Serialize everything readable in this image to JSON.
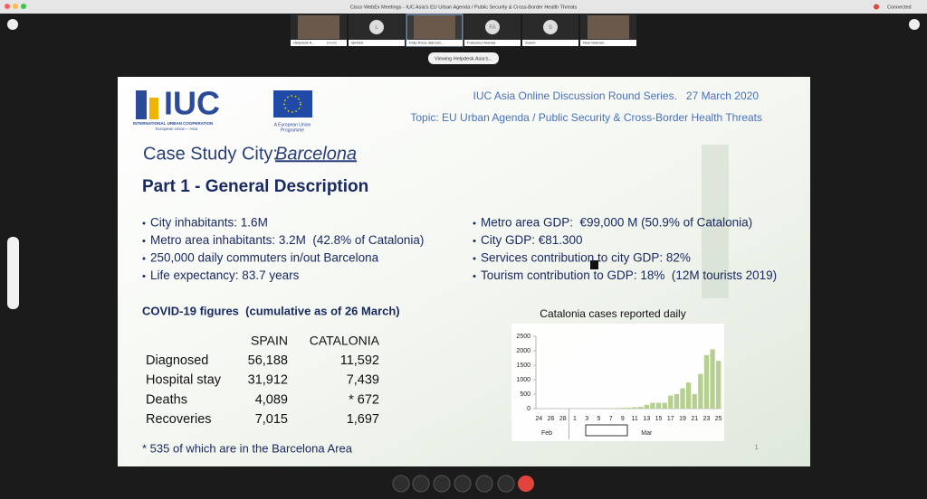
{
  "window": {
    "title": "Cisco WebEx Meetings - IUC Asia's EU Urban Agenda / Public Security & Cross-Border Health Threats",
    "status": "Connected"
  },
  "participants": [
    {
      "name": "Helpdesk A...",
      "role": "(Host)"
    },
    {
      "name": "lambert",
      "initials": "L"
    },
    {
      "name": "Felip Roca, Barcelo..."
    },
    {
      "name": "Francisco Aranda",
      "initials": "FA"
    },
    {
      "name": "Sunmi",
      "initials": "S"
    },
    {
      "name": "Noel Dalman..."
    }
  ],
  "viewing": "Viewing Helpdesk Asia's...",
  "slide": {
    "logo": {
      "mark": "IUC",
      "name": "INTERNATIONAL URBAN COOPERATION",
      "region": "European Union – Asia"
    },
    "eu_logo": {
      "line1": "A European Union",
      "line2": "Programme"
    },
    "series_title": "IUC Asia Online Discussion Round Series.   27 March 2020",
    "topic": "Topic: EU Urban Agenda / Public Security & Cross-Border Health Threats",
    "case_label": "Case Study City:",
    "city": "Barcelona",
    "heading": "Part 1 - General Description",
    "bullets_left": [
      "City inhabitants: 1.6M",
      "Metro area inhabitants: 3.2M  (42.8% of Catalonia)",
      "250,000 daily commuters in/out Barcelona",
      "Life expectancy: 83.7 years"
    ],
    "bullets_right": [
      "Metro area GDP:  €99,000 M (50.9% of Catalonia)",
      "City GDP: €81.300",
      "Services contribution to city GDP: 82%",
      "Tourism contribution to GDP: 18%  (12M tourists 2019)"
    ],
    "covid_title": "COVID-19 figures  (cumulative as of 26 March)",
    "table": {
      "header": [
        "SPAIN",
        "CATALONIA"
      ],
      "rows": [
        [
          "Diagnosed",
          "56,188",
          "11,592"
        ],
        [
          "Hospital stay",
          "31,912",
          "7,439"
        ],
        [
          "Deaths",
          "4,089",
          "* 672"
        ],
        [
          "Recoveries",
          "7,015",
          "1,697"
        ]
      ]
    },
    "footnote": "* 535 of which are in the Barcelona Area",
    "chart": {
      "type": "bar",
      "title": "Catalonia cases reported daily",
      "categories": [
        "24",
        null,
        "26",
        null,
        "28",
        null,
        "1",
        null,
        "3",
        null,
        "5",
        null,
        "7",
        null,
        "9",
        null,
        "11",
        null,
        "13",
        null,
        "15",
        null,
        "17",
        null,
        "19",
        null,
        "21",
        null,
        "23",
        null,
        "25"
      ],
      "values": [
        0,
        0,
        0,
        1,
        0,
        1,
        2,
        3,
        4,
        6,
        5,
        10,
        11,
        20,
        25,
        30,
        50,
        60,
        130,
        200,
        200,
        200,
        450,
        500,
        700,
        900,
        500,
        1200,
        1850,
        2050,
        1650
      ],
      "color": "#b5cf8f",
      "ylim": [
        0,
        2500
      ],
      "yticks": [
        0,
        500,
        1000,
        1500,
        2000,
        2500
      ],
      "grid": false,
      "month_labels": [
        "Feb",
        "Mar"
      ]
    },
    "page_number": "1"
  }
}
